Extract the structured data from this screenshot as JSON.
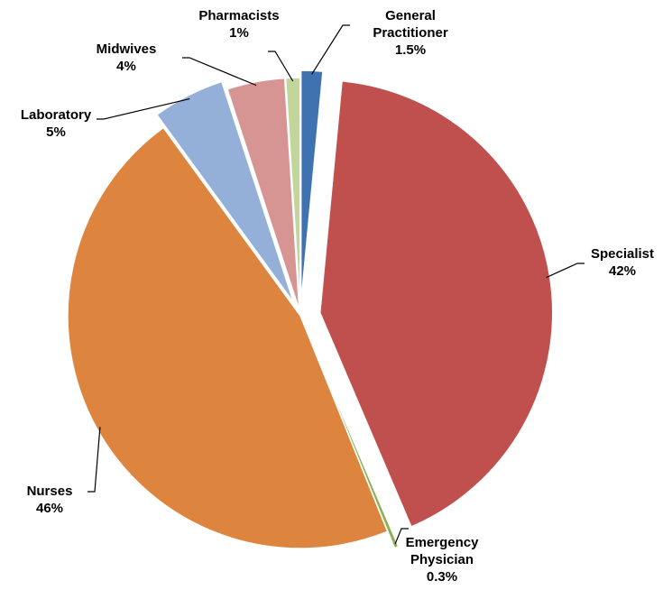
{
  "chart_data": {
    "type": "pie",
    "categories": [
      "General Practitioner",
      "Specialist",
      "Emergency Physician",
      "Nurses",
      "Laboratory",
      "Midwives",
      "Pharmacists"
    ],
    "values": [
      1.5,
      42,
      0.3,
      46,
      5,
      4,
      1
    ],
    "value_labels": [
      "1.5%",
      "42%",
      "0.3%",
      "46%",
      "5%",
      "4%",
      "1%"
    ],
    "colors": [
      "#3e72b0",
      "#c0504d",
      "#8db255",
      "#dd853e",
      "#95b0d8",
      "#d69593",
      "#c2d69b"
    ]
  }
}
